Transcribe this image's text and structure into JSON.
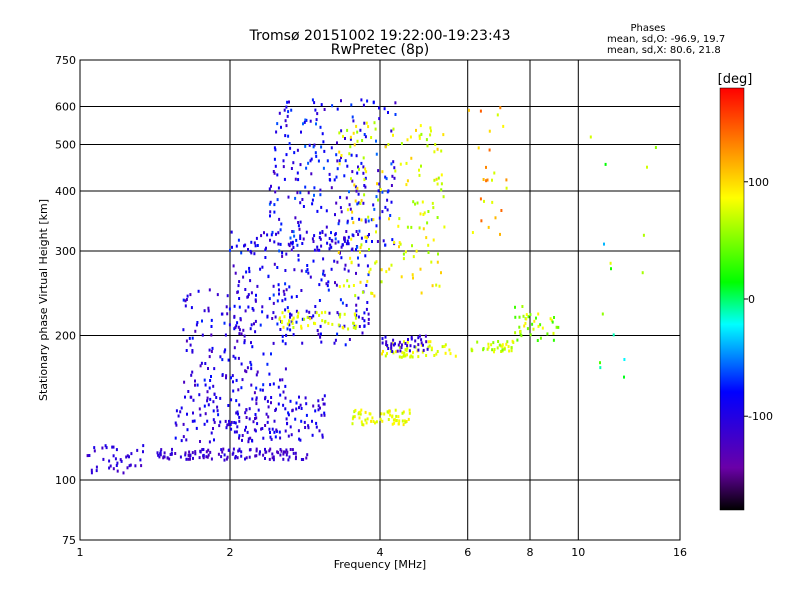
{
  "title": "Tromsø 20151002 19:22:00-19:23:43",
  "subtitle": "RwPretec (8p)",
  "phase_stats": {
    "heading": "Phases",
    "line_o": "mean, sd,O: -96.9, 19.7",
    "line_x": "mean, sd,X: 80.6, 21.8"
  },
  "colorbar": {
    "unit_label": "[deg]",
    "ticks": [
      "100",
      "0",
      "-100"
    ],
    "tick_values": [
      100,
      0,
      -100
    ],
    "range": [
      -180,
      180
    ]
  },
  "chart_data": {
    "type": "scatter",
    "xlabel": "Frequency [MHz]",
    "ylabel": "Stationary phase Virtual Height [km]",
    "xscale": "log",
    "yscale": "log",
    "xlim": [
      1,
      16
    ],
    "ylim": [
      75,
      750
    ],
    "x_ticks": [
      1,
      2,
      4,
      6,
      8,
      10,
      16
    ],
    "x_tick_labels": [
      "1",
      "2",
      "4",
      "6",
      "8",
      "10",
      "16"
    ],
    "y_ticks": [
      75,
      100,
      200,
      300,
      400,
      500,
      600,
      750
    ],
    "y_tick_labels": [
      "75",
      "100",
      "200",
      "300",
      "400",
      "500",
      "600",
      "750"
    ],
    "grid": true,
    "color_by": "phase (deg)",
    "clusters": [
      {
        "x_range": [
          1.03,
          1.35
        ],
        "y_range": [
          103,
          118
        ],
        "phase": -110,
        "spread": 15,
        "count": 40
      },
      {
        "x_range": [
          1.4,
          2.9
        ],
        "y_range": [
          110,
          116
        ],
        "phase": -115,
        "spread": 15,
        "count": 120
      },
      {
        "x_range": [
          1.55,
          3.1
        ],
        "y_range": [
          120,
          150
        ],
        "phase": -100,
        "spread": 25,
        "count": 180
      },
      {
        "x_range": [
          1.6,
          2.6
        ],
        "y_range": [
          150,
          250
        ],
        "phase": -100,
        "spread": 30,
        "count": 150
      },
      {
        "x_range": [
          2.0,
          3.8
        ],
        "y_range": [
          190,
          330
        ],
        "phase": -95,
        "spread": 30,
        "count": 220
      },
      {
        "x_range": [
          2.4,
          4.3
        ],
        "y_range": [
          300,
          620
        ],
        "phase": -90,
        "spread": 35,
        "count": 260
      },
      {
        "x_range": [
          3.3,
          5.4
        ],
        "y_range": [
          240,
          560
        ],
        "phase": 80,
        "spread": 25,
        "count": 160
      },
      {
        "x_range": [
          2.5,
          3.6
        ],
        "y_range": [
          205,
          225
        ],
        "phase": 80,
        "spread": 15,
        "count": 50
      },
      {
        "x_range": [
          3.5,
          4.6
        ],
        "y_range": [
          130,
          140
        ],
        "phase": 80,
        "spread": 15,
        "count": 60
      },
      {
        "x_range": [
          4.0,
          5.7
        ],
        "y_range": [
          180,
          195
        ],
        "phase": 80,
        "spread": 15,
        "count": 50
      },
      {
        "x_range": [
          6.1,
          7.5
        ],
        "y_range": [
          185,
          195
        ],
        "phase": 70,
        "spread": 20,
        "count": 35
      },
      {
        "x_range": [
          7.4,
          9.2
        ],
        "y_range": [
          195,
          230
        ],
        "phase": 60,
        "spread": 35,
        "count": 40
      },
      {
        "x_range": [
          4.0,
          5.0
        ],
        "y_range": [
          185,
          200
        ],
        "phase": -110,
        "spread": 15,
        "count": 40
      },
      {
        "x_range": [
          6.0,
          7.2
        ],
        "y_range": [
          320,
          600
        ],
        "phase": 110,
        "spread": 40,
        "count": 25
      },
      {
        "x_range": [
          10.3,
          14.5
        ],
        "y_range": [
          150,
          550
        ],
        "phase": 20,
        "spread": 60,
        "count": 15
      }
    ]
  }
}
